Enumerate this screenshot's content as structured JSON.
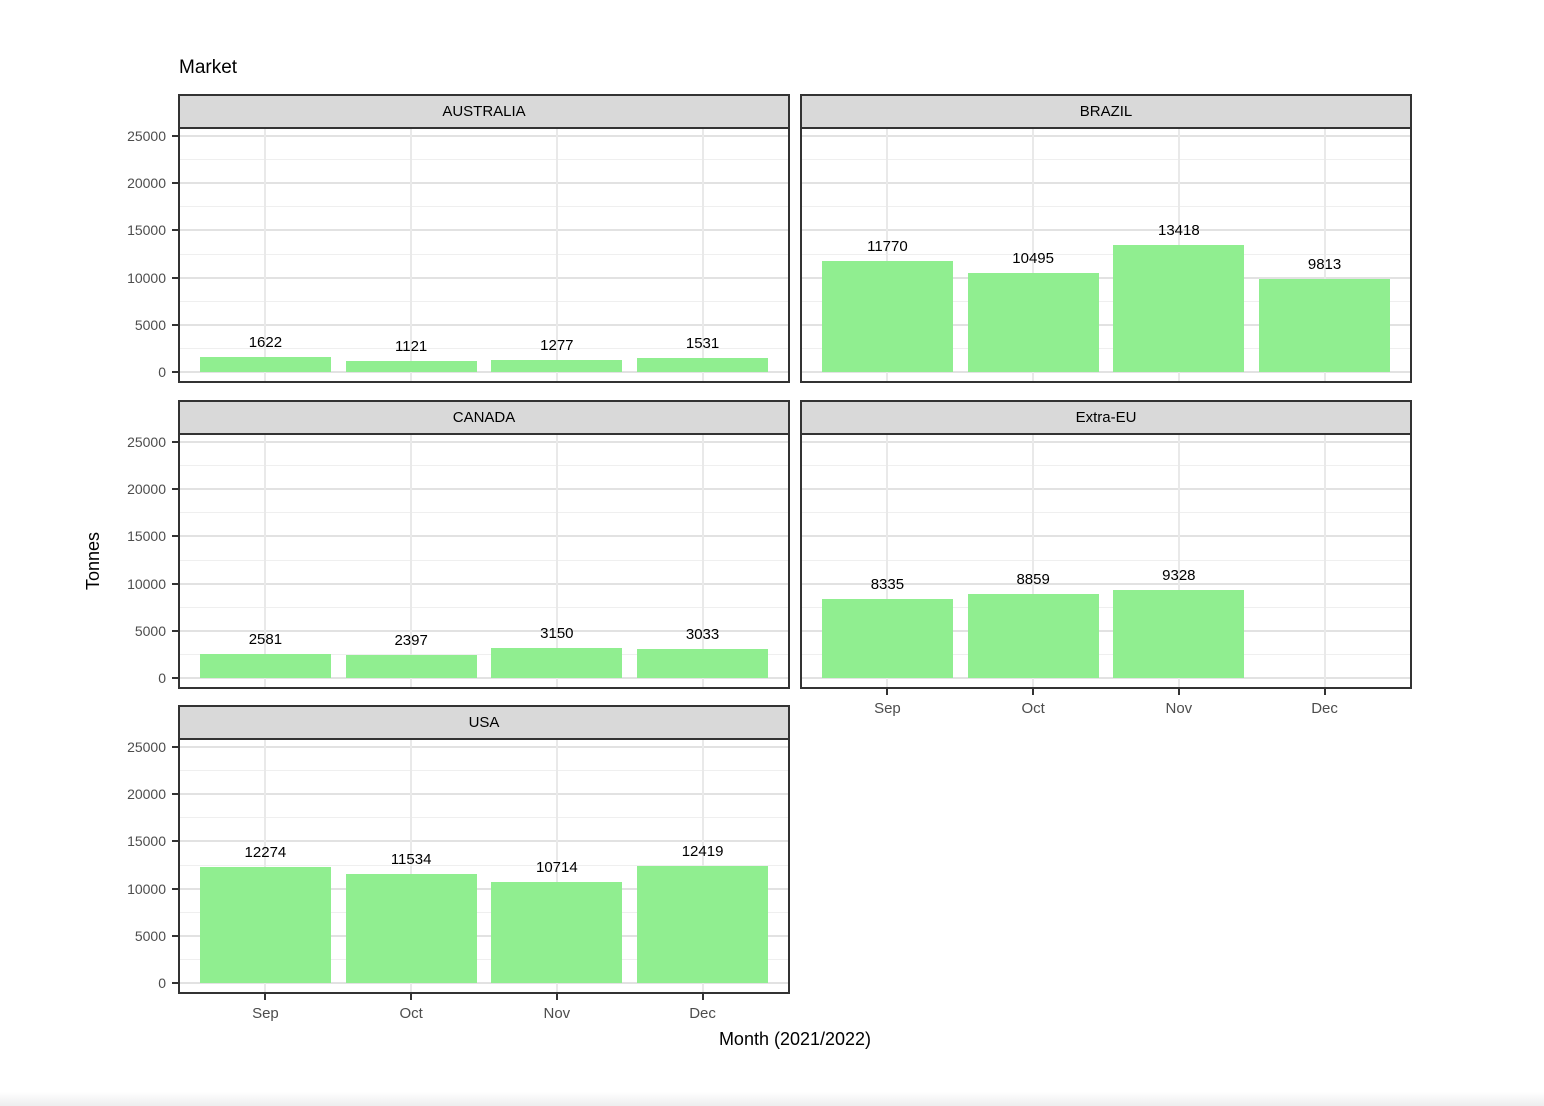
{
  "title": "Market",
  "axes": {
    "y_label": "Tonnes",
    "x_label": "Month (2021/2022)",
    "y_ticks": [
      0,
      5000,
      10000,
      15000,
      20000,
      25000
    ],
    "y_minor_ticks": [
      2500,
      7500,
      12500,
      17500,
      22500
    ],
    "x_ticks": [
      "Sep",
      "Oct",
      "Nov",
      "Dec"
    ]
  },
  "colors": {
    "bar_fill": "#90EE90",
    "strip_bg": "#D9D9D9",
    "panel_border": "#333333",
    "grid_major": "#E2E2E2",
    "grid_minor": "#EFEFEF",
    "tick_label": "#4D4D4D",
    "text": "#000000"
  },
  "chart_data": {
    "type": "bar",
    "title": "Market",
    "xlabel": "Month (2021/2022)",
    "ylabel": "Tonnes",
    "categories": [
      "Sep",
      "Oct",
      "Nov",
      "Dec"
    ],
    "ylim": [
      0,
      26300
    ],
    "grid": true,
    "legend": false,
    "facets": [
      {
        "label": "AUSTRALIA",
        "values": [
          1622,
          1121,
          1277,
          1531
        ]
      },
      {
        "label": "BRAZIL",
        "values": [
          11770,
          10495,
          13418,
          9813
        ]
      },
      {
        "label": "CANADA",
        "values": [
          2581,
          2397,
          3150,
          3033
        ]
      },
      {
        "label": "Extra-EU",
        "values": [
          8335,
          8859,
          9328,
          null
        ]
      },
      {
        "label": "USA",
        "values": [
          12274,
          11534,
          10714,
          12419
        ]
      }
    ]
  }
}
